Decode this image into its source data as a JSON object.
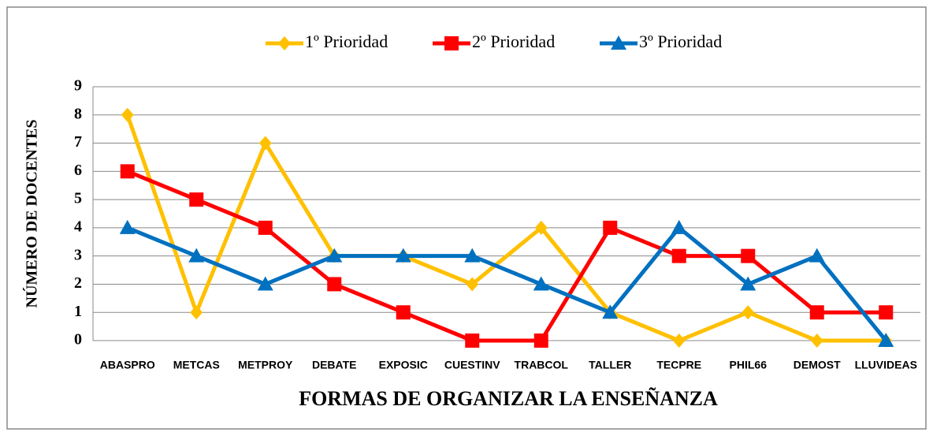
{
  "chart_data": {
    "type": "line",
    "x_label": "FORMAS DE ORGANIZAR LA ENSEÑANZA",
    "y_label": "NÚMERO DE DOCENTES",
    "categories": [
      "ABASPRO",
      "METCAS",
      "METPROY",
      "DEBATE",
      "EXPOSIC",
      "CUESTINV",
      "TRABCOL",
      "TALLER",
      "TECPRE",
      "PHIL66",
      "DEMOST",
      "LLUVIDEAS"
    ],
    "series": [
      {
        "name": "1º Prioridad",
        "color": "#FFC000",
        "marker": "diamond",
        "values": [
          8,
          1,
          7,
          3,
          3,
          2,
          4,
          1,
          0,
          1,
          0,
          0
        ]
      },
      {
        "name": "2º Prioridad",
        "color": "#FF0000",
        "marker": "square",
        "values": [
          6,
          5,
          4,
          2,
          1,
          0,
          0,
          4,
          3,
          3,
          1,
          1
        ]
      },
      {
        "name": "3º Prioridad",
        "color": "#0070C0",
        "marker": "triangle",
        "values": [
          4,
          3,
          2,
          3,
          3,
          3,
          2,
          1,
          4,
          2,
          3,
          0
        ]
      }
    ],
    "ylim": [
      0,
      9
    ],
    "yticks": [
      0,
      1,
      2,
      3,
      4,
      5,
      6,
      7,
      8,
      9
    ],
    "grid": true,
    "legend": "top"
  }
}
